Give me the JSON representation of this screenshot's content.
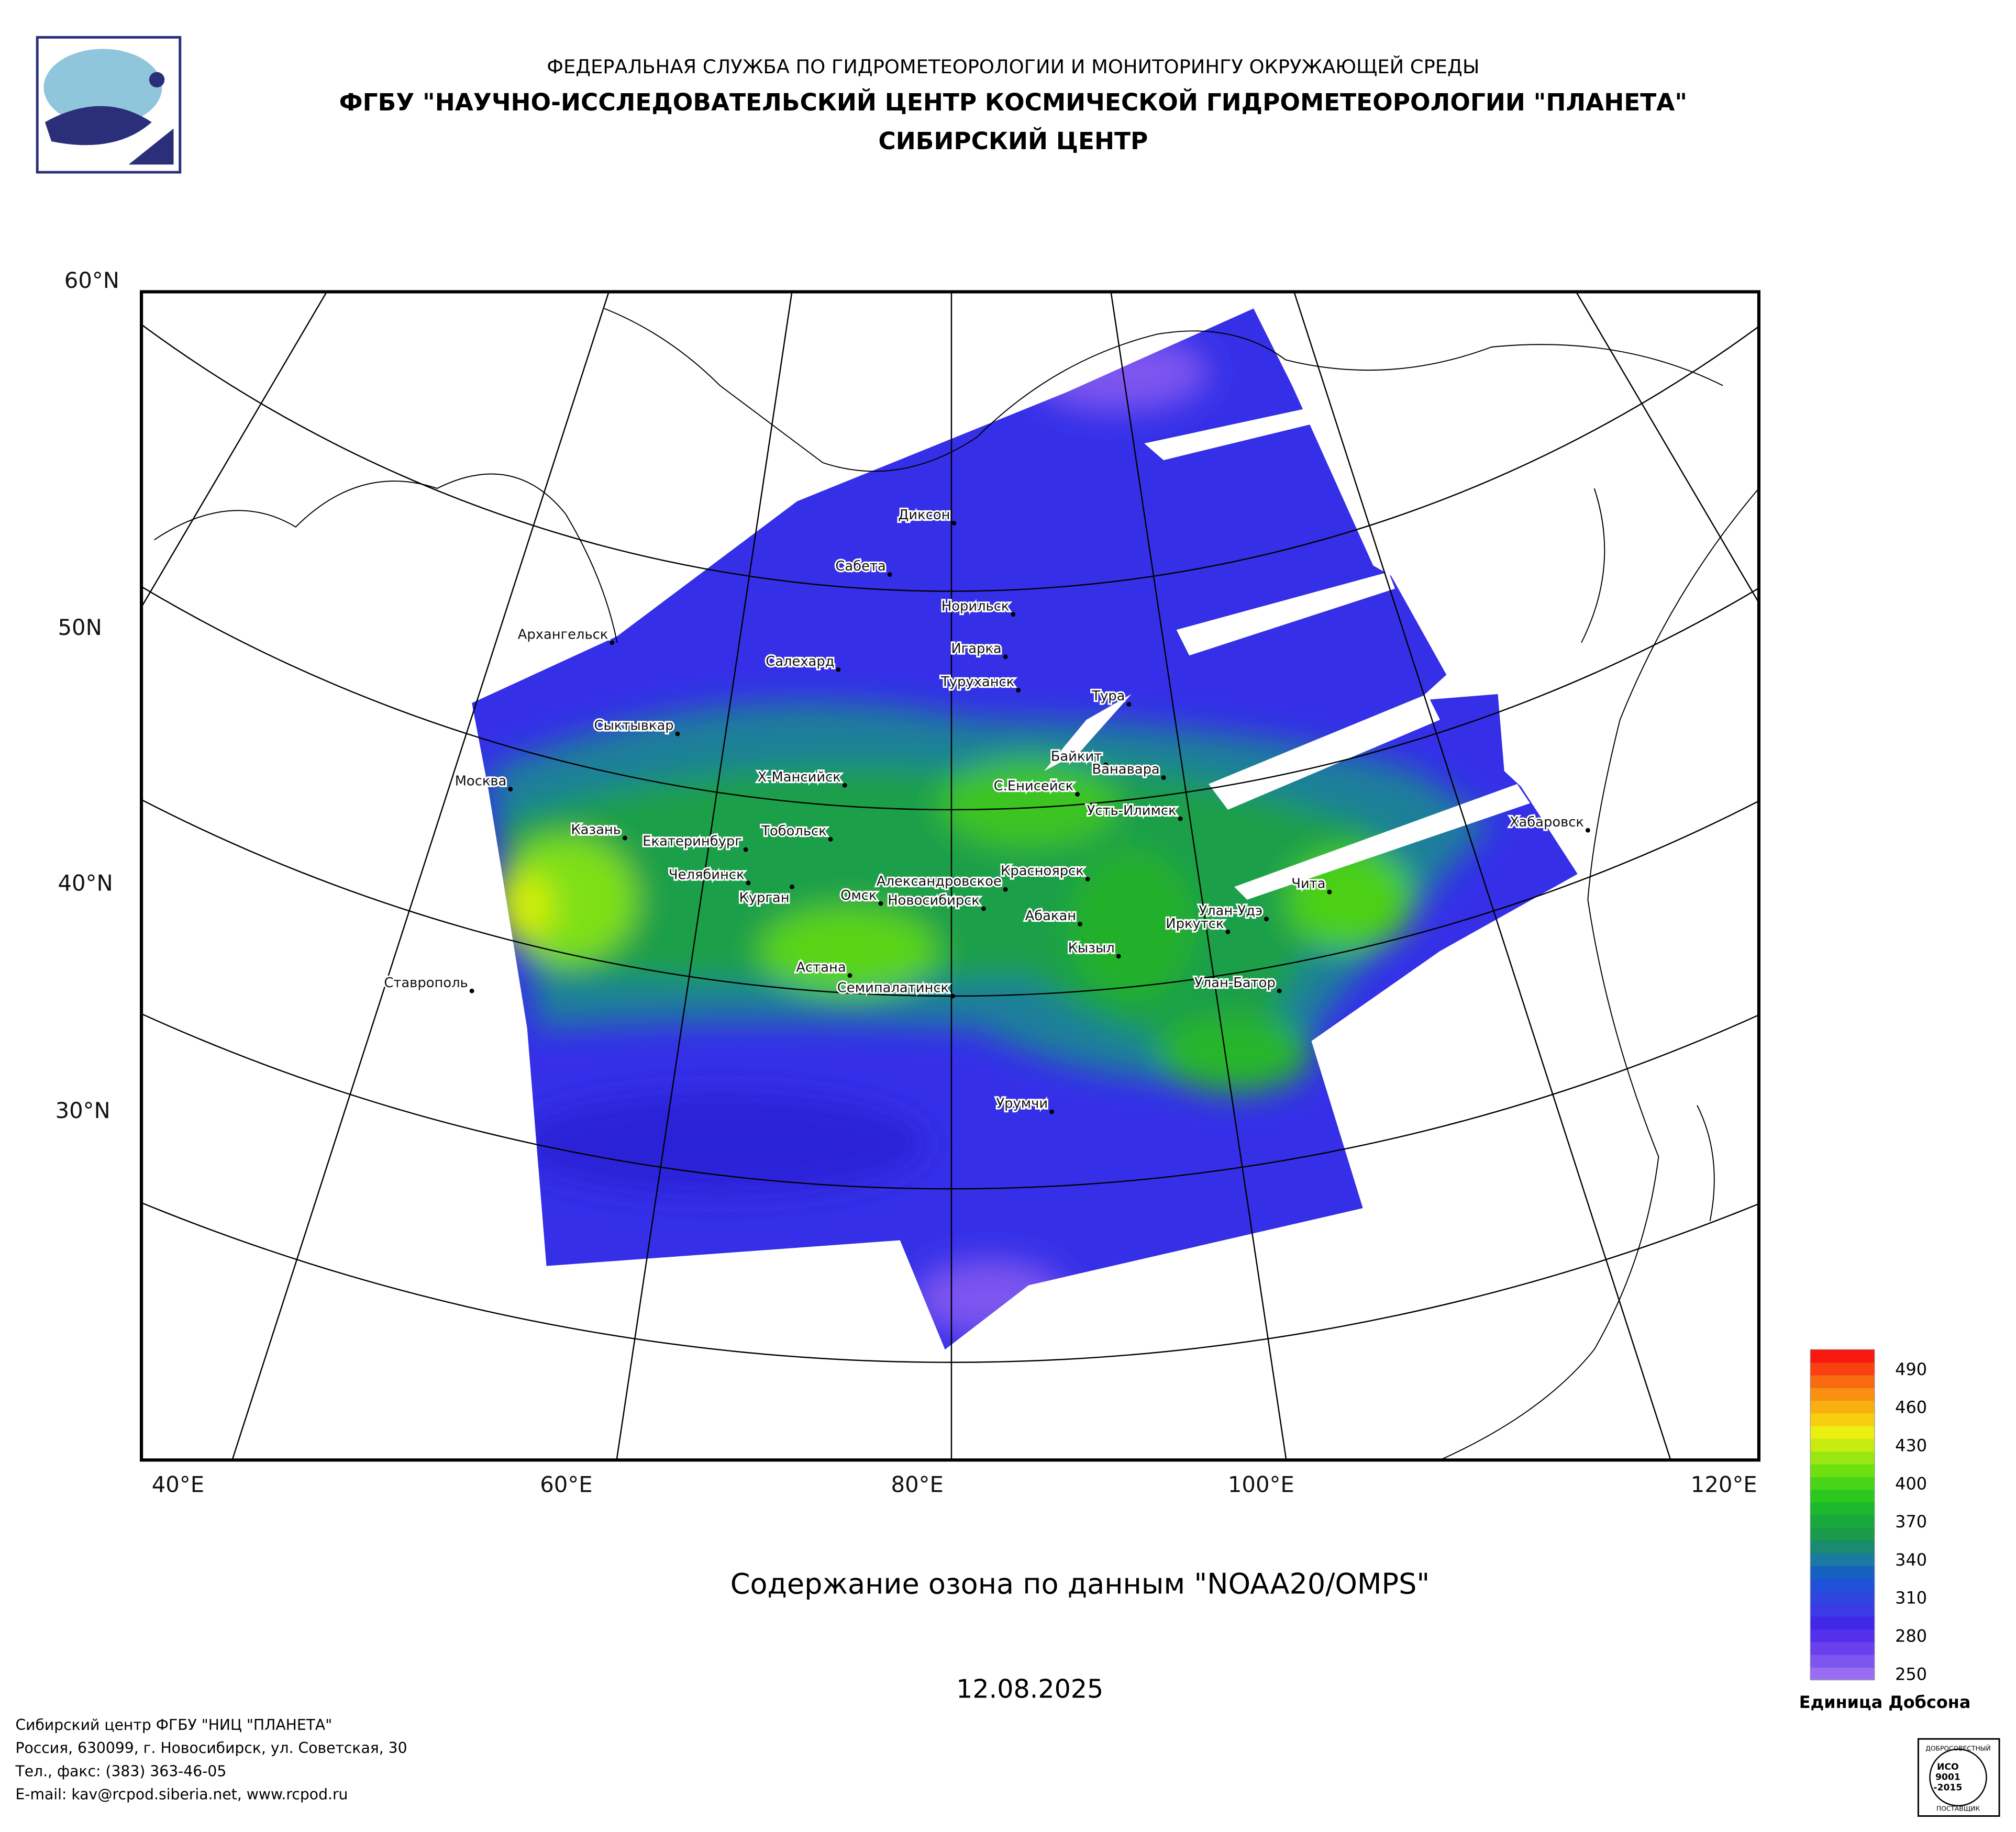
{
  "header": {
    "agency": "ФЕДЕРАЛЬНАЯ СЛУЖБА ПО ГИДРОМЕТЕОРОЛОГИИ И МОНИТОРИНГУ ОКРУЖАЮЩЕЙ СРЕДЫ",
    "institute": "ФГБУ \"НАУЧНО-ИССЛЕДОВАТЕЛЬСКИЙ ЦЕНТР КОСМИЧЕСКОЙ ГИДРОМЕТЕОРОЛОГИИ \"ПЛАНЕТА\"",
    "center": "СИБИРСКИЙ ЦЕНТР"
  },
  "map": {
    "lat_labels": [
      "60°N",
      "50N",
      "40°N",
      "30°N"
    ],
    "lon_labels": [
      "40°E",
      "60°E",
      "80°E",
      "100°E",
      "120°E"
    ],
    "cities": [
      "Диксон",
      "Сабета",
      "Норильск",
      "Архангельск",
      "Игарка",
      "Салехард",
      "Туруханск",
      "Тура",
      "Сыктывкар",
      "Байкит",
      "Ванавара",
      "Москва",
      "Х-Мансийск",
      "С.Енисейск",
      "Усть-Илимск",
      "Хабаровск",
      "Казань",
      "Тобольск",
      "Екатеринбург",
      "Красноярск",
      "Челябинск",
      "Чита",
      "Александровское",
      "Курган",
      "Омск",
      "Новосибирск",
      "Улан-Удэ",
      "Абакан",
      "Иркутск",
      "Кызыл",
      "Астана",
      "Улан-Батор",
      "Семипалатинск",
      "Ставрополь",
      "Урумчи"
    ]
  },
  "legend": {
    "min": 245,
    "max": 505,
    "ticks": [
      250,
      280,
      310,
      340,
      370,
      400,
      430,
      460,
      490
    ],
    "label": "Единица Добсона",
    "colors": [
      "#9a6cf2",
      "#7d55ef",
      "#6a3fee",
      "#5530ec",
      "#4127e8",
      "#3a3ae6",
      "#2e45e0",
      "#1f50d8",
      "#1660c0",
      "#1a7aa0",
      "#1a8a70",
      "#1c9a4c",
      "#19a83c",
      "#1db82c",
      "#2cc820",
      "#4ad418",
      "#6ee010",
      "#9ae610",
      "#c8ec10",
      "#ecef10",
      "#f6d010",
      "#f8b010",
      "#f89010",
      "#f86a10",
      "#f84010",
      "#f81810"
    ]
  },
  "title": "Содержание озона по данным \"NOAA20/OMPS\"",
  "date": "12.08.2025",
  "footer": [
    "Сибирский центр ФГБУ \"НИЦ \"ПЛАНЕТА\"",
    "Россия, 630099, г. Новосибирск, ул. Советская, 30",
    "Тел., факс: (383) 363-46-05",
    "E-mail: kav@rcpod.siberia.net, www.rcpod.ru"
  ],
  "badge": [
    "ДОБРОСОВЕСТНЫЙ",
    "ИСО",
    "9001",
    "-2015",
    "ПОСТАВЩИК"
  ]
}
